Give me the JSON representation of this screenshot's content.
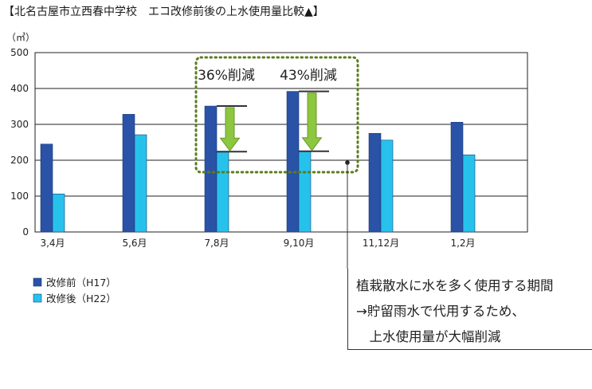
{
  "chart_data": {
    "type": "bar",
    "title": "【北名古屋市立西春中学校　エコ改修前後の上水使用量比較▲】",
    "ylabel": "（㎥）",
    "xlabel": "",
    "categories": [
      "3,4月",
      "5,6月",
      "7,8月",
      "9,10月",
      "11,12月",
      "1,2月"
    ],
    "series": [
      {
        "name": "改修前（H17）",
        "color": "#2a52a6",
        "values": [
          245,
          328,
          351,
          392,
          275,
          306
        ]
      },
      {
        "name": "改修後（H22）",
        "color": "#27c2ec",
        "values": [
          106,
          271,
          224,
          225,
          256,
          215
        ]
      }
    ],
    "ylim": [
      0,
      500
    ],
    "yticks": [
      0,
      100,
      200,
      300,
      400,
      500
    ],
    "grid": true,
    "legend": "bottom-left",
    "annotations": [
      {
        "text": "36%削減",
        "category": "7,8月"
      },
      {
        "text": "43%削減",
        "category": "9,10月"
      }
    ],
    "note_lines": [
      "植栽散水に水を多く使用する期間",
      "→貯留雨水で代用するため、",
      "　上水使用量が大幅削減"
    ]
  }
}
